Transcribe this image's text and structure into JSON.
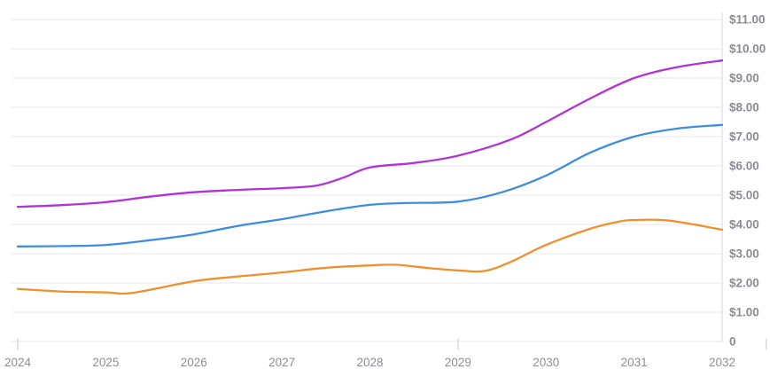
{
  "chart_data": {
    "type": "line",
    "title": "",
    "legend": "none",
    "x_axis": {
      "labels": [
        "2024",
        "2025",
        "2026",
        "2027",
        "2028",
        "2029",
        "2030",
        "2031",
        "2032"
      ],
      "range": [
        2024,
        2032
      ],
      "tick_mark_years": [
        2024,
        2029,
        2032.5
      ]
    },
    "y_axis": {
      "side": "right",
      "range": [
        0,
        11
      ],
      "tick_values": [
        0,
        1,
        2,
        3,
        4,
        5,
        6,
        7,
        8,
        9,
        10,
        11
      ],
      "tick_labels": [
        "0",
        "$1.00",
        "$2.00",
        "$3.00",
        "$4.00",
        "$5.00",
        "$6.00",
        "$7.00",
        "$8.00",
        "$9.00",
        "$10.00",
        "$11.00"
      ]
    },
    "grid": {
      "horizontal": true,
      "vertical": false
    },
    "colors": {
      "gridline": "#f3f3f6",
      "axis_line": "#e2e2e8",
      "tick": "#d9d9de",
      "y_label": "#8b8b96",
      "x_label": "#8e8e99",
      "background": "#ffffff"
    },
    "series": [
      {
        "name": "purple-series",
        "color": "#b232d6",
        "points": [
          [
            2024,
            4.6
          ],
          [
            2024.5,
            4.66
          ],
          [
            2025,
            4.76
          ],
          [
            2025.5,
            4.95
          ],
          [
            2026,
            5.1
          ],
          [
            2026.5,
            5.18
          ],
          [
            2027,
            5.24
          ],
          [
            2027.4,
            5.33
          ],
          [
            2027.7,
            5.6
          ],
          [
            2028,
            5.95
          ],
          [
            2028.5,
            6.1
          ],
          [
            2029,
            6.35
          ],
          [
            2029.6,
            6.9
          ],
          [
            2030,
            7.5
          ],
          [
            2030.5,
            8.3
          ],
          [
            2031,
            9.0
          ],
          [
            2031.5,
            9.38
          ],
          [
            2032,
            9.6
          ]
        ]
      },
      {
        "name": "blue-series",
        "color": "#3e8ede",
        "points": [
          [
            2024,
            3.25
          ],
          [
            2024.5,
            3.26
          ],
          [
            2025,
            3.3
          ],
          [
            2025.5,
            3.46
          ],
          [
            2026,
            3.66
          ],
          [
            2026.5,
            3.95
          ],
          [
            2027,
            4.18
          ],
          [
            2027.5,
            4.45
          ],
          [
            2028,
            4.67
          ],
          [
            2028.4,
            4.73
          ],
          [
            2029,
            4.78
          ],
          [
            2029.5,
            5.1
          ],
          [
            2030,
            5.67
          ],
          [
            2030.5,
            6.45
          ],
          [
            2031,
            7.0
          ],
          [
            2031.5,
            7.28
          ],
          [
            2032,
            7.4
          ]
        ]
      },
      {
        "name": "orange-series",
        "color": "#f0902c",
        "points": [
          [
            2024,
            1.8
          ],
          [
            2024.5,
            1.71
          ],
          [
            2025,
            1.68
          ],
          [
            2025.3,
            1.66
          ],
          [
            2026,
            2.06
          ],
          [
            2026.5,
            2.22
          ],
          [
            2027,
            2.36
          ],
          [
            2027.5,
            2.52
          ],
          [
            2028,
            2.6
          ],
          [
            2028.3,
            2.62
          ],
          [
            2028.7,
            2.5
          ],
          [
            2029,
            2.43
          ],
          [
            2029.3,
            2.41
          ],
          [
            2029.6,
            2.72
          ],
          [
            2030,
            3.3
          ],
          [
            2030.5,
            3.85
          ],
          [
            2030.8,
            4.08
          ],
          [
            2031,
            4.15
          ],
          [
            2031.4,
            4.13
          ],
          [
            2032,
            3.82
          ]
        ]
      }
    ]
  }
}
